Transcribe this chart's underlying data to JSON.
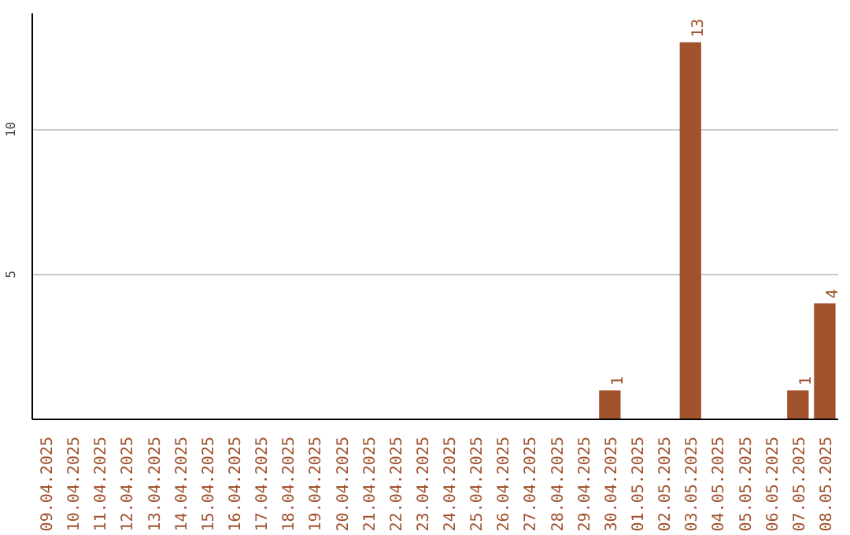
{
  "chart_data": {
    "type": "bar",
    "categories": [
      "09.04.2025",
      "10.04.2025",
      "11.04.2025",
      "12.04.2025",
      "13.04.2025",
      "14.04.2025",
      "15.04.2025",
      "16.04.2025",
      "17.04.2025",
      "18.04.2025",
      "19.04.2025",
      "20.04.2025",
      "21.04.2025",
      "22.04.2025",
      "23.04.2025",
      "24.04.2025",
      "25.04.2025",
      "26.04.2025",
      "27.04.2025",
      "28.04.2025",
      "29.04.2025",
      "30.04.2025",
      "01.05.2025",
      "02.05.2025",
      "03.05.2025",
      "04.05.2025",
      "05.05.2025",
      "06.05.2025",
      "07.05.2025",
      "08.05.2025"
    ],
    "values": [
      0,
      0,
      0,
      0,
      0,
      0,
      0,
      0,
      0,
      0,
      0,
      0,
      0,
      0,
      0,
      0,
      0,
      0,
      0,
      0,
      0,
      1,
      0,
      0,
      13,
      0,
      0,
      0,
      1,
      4
    ],
    "value_labels": [
      null,
      null,
      null,
      null,
      null,
      null,
      null,
      null,
      null,
      null,
      null,
      null,
      null,
      null,
      null,
      null,
      null,
      null,
      null,
      null,
      null,
      "1",
      null,
      null,
      "13",
      null,
      null,
      null,
      "1",
      "4"
    ],
    "color": "#a0522d",
    "ylim": [
      0,
      14
    ],
    "yticks": [
      5,
      10
    ],
    "grid": "y"
  }
}
